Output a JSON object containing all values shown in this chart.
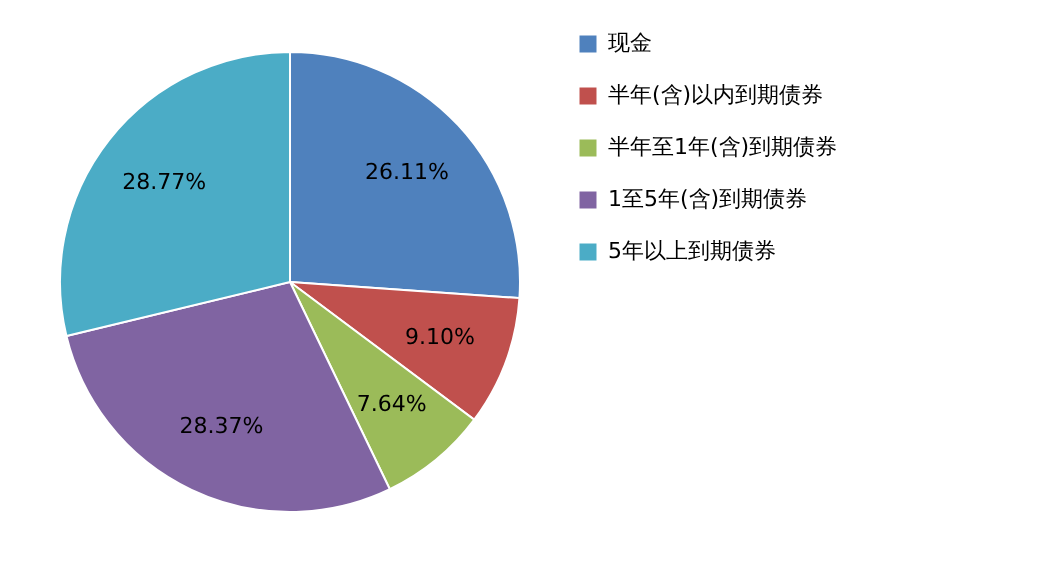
{
  "chart_data": {
    "type": "pie",
    "categories": [
      "现金",
      "半年(含)以内到期债券",
      "半年至1年(含)到期债券",
      "1至5年(含)到期债券",
      "5年以上到期债券"
    ],
    "values": [
      26.11,
      9.1,
      7.64,
      28.37,
      28.77
    ],
    "value_labels": [
      "26.11%",
      "9.10%",
      "7.64%",
      "28.37%",
      "28.77%"
    ],
    "colors": [
      "#4f81bd",
      "#c0504d",
      "#9bbb59",
      "#8064a2",
      "#4bacc6"
    ],
    "legend": "right"
  }
}
